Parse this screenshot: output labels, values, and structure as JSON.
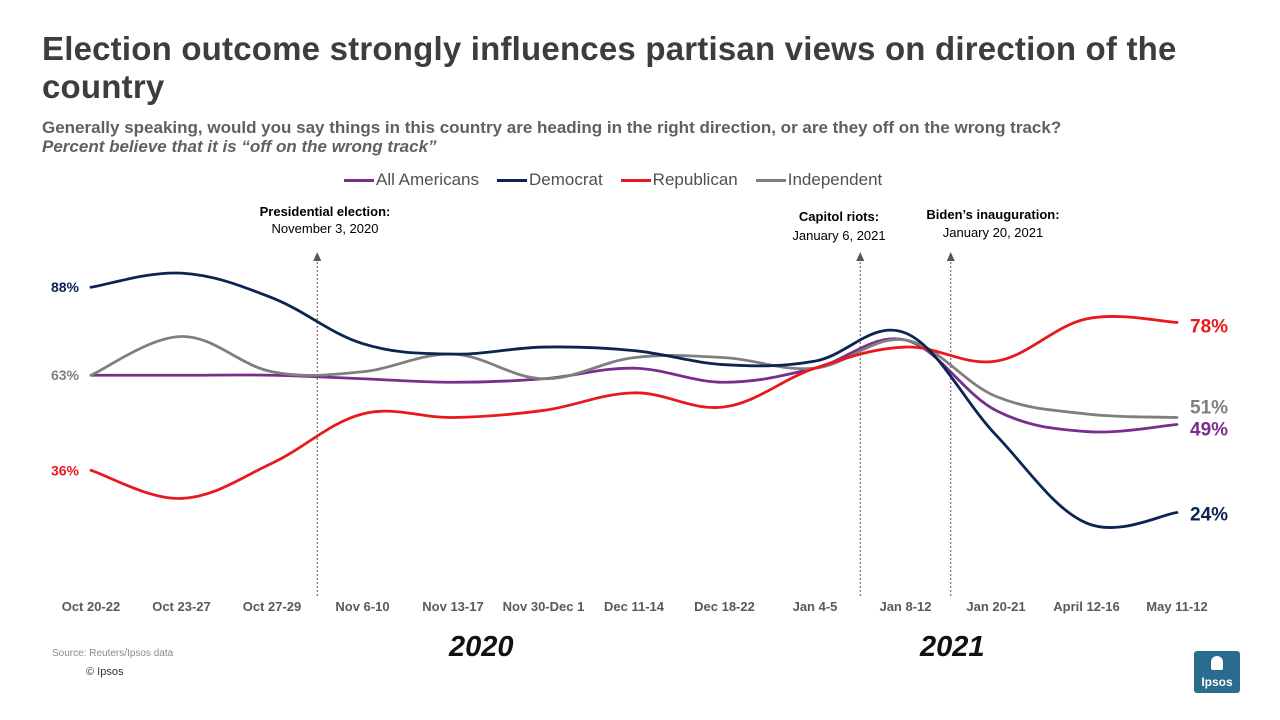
{
  "title": "Election outcome strongly influences partisan views on direction of the country",
  "subtitle": "Generally speaking, would you say things in this country are heading in the right direction, or are they off on the wrong track?",
  "subtitle_italic": "Percent believe that it is “off on the wrong track”",
  "colors": {
    "all_americans": "#7b2d8e",
    "democrat": "#0a2552",
    "republican": "#e8181c",
    "independent": "#7f7f7f"
  },
  "chart_data": {
    "type": "line",
    "categories": [
      "Oct 20-22",
      "Oct 23-27",
      "Oct 27-29",
      "Nov 6-10",
      "Nov 13-17",
      "Nov 30-Dec 1",
      "Dec 11-14",
      "Dec 18-22",
      "Jan 4-5",
      "Jan 8-12",
      "Jan 20-21",
      "April 12-16",
      "May 11-12"
    ],
    "series": [
      {
        "name": "All Americans",
        "color": "#7b2d8e",
        "values": [
          63,
          63,
          63,
          62,
          61,
          62,
          65,
          61,
          65,
          73,
          53,
          47,
          49
        ]
      },
      {
        "name": "Democrat",
        "color": "#0a2552",
        "values": [
          88,
          92,
          85,
          72,
          69,
          71,
          70,
          66,
          67,
          75,
          46,
          21,
          24
        ]
      },
      {
        "name": "Republican",
        "color": "#e8181c",
        "values": [
          36,
          28,
          38,
          52,
          51,
          53,
          58,
          54,
          65,
          71,
          67,
          79,
          78
        ]
      },
      {
        "name": "Independent",
        "color": "#7f7f7f",
        "values": [
          63,
          74,
          64,
          64,
          69,
          62,
          68,
          68,
          65,
          73,
          57,
          52,
          51
        ]
      }
    ],
    "start_labels": [
      {
        "text": "88%",
        "series": "Democrat"
      },
      {
        "text": "63%",
        "series": "All Americans"
      },
      {
        "text": "36%",
        "series": "Republican"
      }
    ],
    "end_labels": [
      {
        "text": "78%",
        "series": "Republican"
      },
      {
        "text": "51%",
        "series": "Independent"
      },
      {
        "text": "49%",
        "series": "All Americans"
      },
      {
        "text": "24%",
        "series": "Democrat"
      }
    ],
    "annotations": [
      {
        "title": "Presidential election:",
        "date": "November 3, 2020",
        "after_category": "Oct 27-29"
      },
      {
        "title": "Capitol riots:",
        "date": "January 6, 2021",
        "after_category": "Jan 4-5"
      },
      {
        "title": "Biden’s inauguration:",
        "date": "January 20, 2021",
        "after_category": "Jan 8-12"
      }
    ],
    "years": [
      "2020",
      "2021"
    ],
    "ylim": [
      0,
      100
    ],
    "grid": false,
    "legend": "top"
  },
  "footer": {
    "source": "Source: Reuters/Ipsos data",
    "copyright": "© Ipsos",
    "logo_text": "Ipsos"
  }
}
